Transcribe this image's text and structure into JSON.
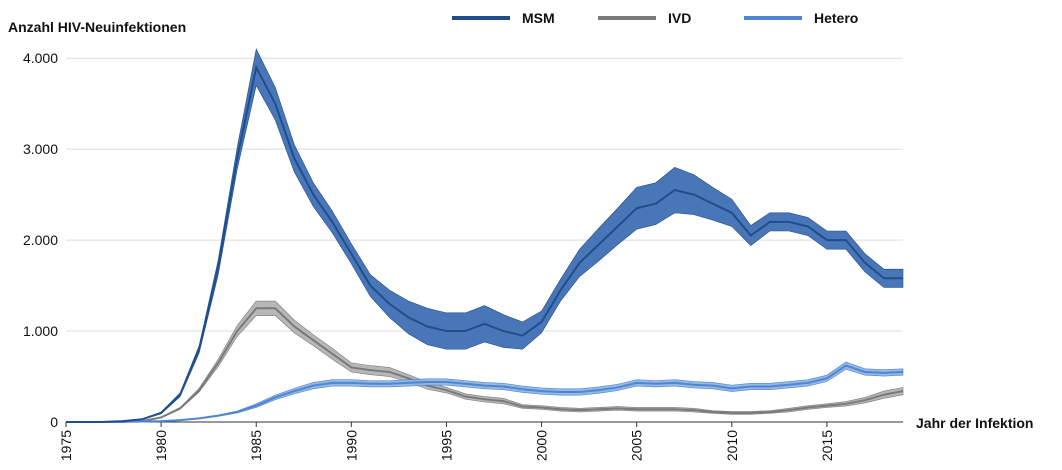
{
  "chart_data": {
    "type": "line-band",
    "y_label": "Anzahl HIV-Neuinfektionen",
    "x_label": "Jahr der Infektion",
    "x": [
      1975,
      1976,
      1977,
      1978,
      1979,
      1980,
      1981,
      1982,
      1983,
      1984,
      1985,
      1986,
      1987,
      1988,
      1989,
      1990,
      1991,
      1992,
      1993,
      1994,
      1995,
      1996,
      1997,
      1998,
      1999,
      2000,
      2001,
      2002,
      2003,
      2004,
      2005,
      2006,
      2007,
      2008,
      2009,
      2010,
      2011,
      2012,
      2013,
      2014,
      2015,
      2016,
      2017,
      2018,
      2019
    ],
    "xlim": [
      1975,
      2019
    ],
    "xticks": [
      1975,
      1980,
      1985,
      1990,
      1995,
      2000,
      2005,
      2010,
      2015
    ],
    "ylim": [
      0,
      4200
    ],
    "yticks": [
      0,
      {
        "value": 1000,
        "label": "1.000"
      },
      {
        "value": 2000,
        "label": "2.000"
      },
      {
        "value": 3000,
        "label": "3.000"
      },
      {
        "value": 4000,
        "label": "4.000"
      }
    ],
    "grid": true,
    "series": [
      {
        "name": "MSM",
        "color": "#1f4e8c",
        "band_color": "#3f6fb3",
        "values": [
          0,
          0,
          2,
          10,
          30,
          100,
          300,
          800,
          1700,
          2900,
          3900,
          3500,
          2900,
          2500,
          2200,
          1850,
          1500,
          1300,
          1150,
          1050,
          1000,
          1000,
          1080,
          1000,
          950,
          1100,
          1450,
          1750,
          1950,
          2150,
          2350,
          2400,
          2550,
          2500,
          2400,
          2300,
          2050,
          2200,
          2200,
          2150,
          2000,
          2000,
          1750,
          1580,
          1580
        ],
        "lower": [
          0,
          0,
          2,
          9,
          27,
          90,
          280,
          760,
          1620,
          2780,
          3700,
          3320,
          2750,
          2370,
          2080,
          1740,
          1380,
          1150,
          970,
          850,
          800,
          800,
          880,
          820,
          800,
          980,
          1330,
          1600,
          1770,
          1950,
          2120,
          2170,
          2300,
          2280,
          2220,
          2150,
          1940,
          2100,
          2100,
          2050,
          1900,
          1900,
          1650,
          1480,
          1480
        ],
        "upper": [
          0,
          0,
          2,
          11,
          33,
          110,
          320,
          840,
          1780,
          3020,
          4100,
          3680,
          3050,
          2630,
          2320,
          1960,
          1620,
          1450,
          1330,
          1250,
          1200,
          1200,
          1280,
          1180,
          1100,
          1220,
          1570,
          1900,
          2130,
          2350,
          2580,
          2630,
          2800,
          2720,
          2580,
          2450,
          2160,
          2300,
          2300,
          2250,
          2100,
          2100,
          1850,
          1680,
          1680
        ]
      },
      {
        "name": "IVD",
        "color": "#7a7a7a",
        "band_color": "#b3b3b3",
        "values": [
          0,
          0,
          0,
          2,
          10,
          50,
          150,
          350,
          650,
          1000,
          1250,
          1250,
          1050,
          900,
          750,
          600,
          570,
          550,
          480,
          400,
          350,
          280,
          250,
          230,
          170,
          160,
          140,
          130,
          140,
          150,
          140,
          140,
          140,
          130,
          110,
          100,
          100,
          110,
          130,
          160,
          180,
          200,
          240,
          300,
          340
        ],
        "lower": [
          0,
          0,
          0,
          2,
          9,
          45,
          140,
          330,
          610,
          940,
          1170,
          1170,
          980,
          840,
          690,
          550,
          520,
          500,
          440,
          360,
          320,
          250,
          220,
          200,
          150,
          140,
          120,
          110,
          120,
          130,
          120,
          120,
          120,
          110,
          95,
          85,
          85,
          95,
          110,
          140,
          160,
          175,
          210,
          260,
          300
        ],
        "upper": [
          0,
          0,
          0,
          2,
          11,
          55,
          160,
          370,
          690,
          1060,
          1330,
          1330,
          1120,
          960,
          810,
          650,
          620,
          600,
          520,
          440,
          380,
          310,
          280,
          260,
          190,
          180,
          160,
          150,
          160,
          170,
          160,
          160,
          160,
          150,
          125,
          115,
          115,
          125,
          150,
          180,
          200,
          225,
          270,
          340,
          380
        ]
      },
      {
        "name": "Hetero",
        "color": "#4f86d0",
        "band_color": "#8fb4e6",
        "values": [
          0,
          0,
          0,
          2,
          5,
          10,
          20,
          40,
          70,
          110,
          180,
          270,
          340,
          400,
          430,
          430,
          420,
          420,
          430,
          440,
          440,
          420,
          400,
          390,
          360,
          340,
          330,
          330,
          350,
          380,
          430,
          420,
          430,
          410,
          400,
          370,
          390,
          390,
          410,
          430,
          480,
          620,
          550,
          540,
          550
        ],
        "lower": [
          0,
          0,
          0,
          2,
          5,
          9,
          18,
          36,
          63,
          100,
          160,
          245,
          310,
          365,
          395,
          395,
          385,
          385,
          395,
          405,
          405,
          385,
          365,
          355,
          325,
          305,
          295,
          295,
          315,
          345,
          395,
          385,
          395,
          375,
          365,
          335,
          355,
          355,
          375,
          395,
          445,
          580,
          515,
          505,
          515
        ],
        "upper": [
          0,
          0,
          0,
          2,
          5,
          11,
          22,
          44,
          77,
          120,
          200,
          295,
          370,
          435,
          465,
          465,
          455,
          455,
          465,
          475,
          475,
          455,
          435,
          425,
          395,
          375,
          365,
          365,
          385,
          415,
          465,
          455,
          465,
          445,
          435,
          405,
          425,
          425,
          445,
          465,
          515,
          660,
          585,
          575,
          585
        ]
      }
    ]
  }
}
